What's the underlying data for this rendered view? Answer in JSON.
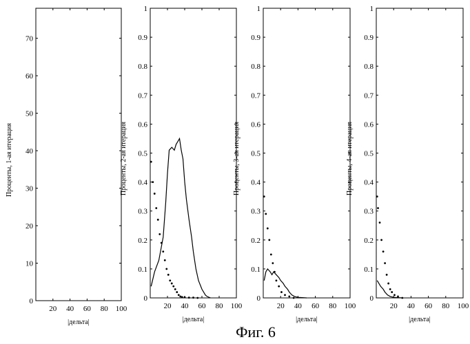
{
  "figure_caption": "Фиг. 6",
  "colors": {
    "ink": "#000000",
    "background": "#ffffff"
  },
  "chart_data": [
    {
      "type": "line",
      "ylabel": "Проценты, 1-ая итерация",
      "xlabel": "|дельта|",
      "xlim": [
        0,
        100
      ],
      "ylim": [
        0,
        78
      ],
      "x_ticks": [
        20,
        40,
        60,
        80,
        100
      ],
      "y_ticks": [
        0,
        10,
        20,
        30,
        40,
        50,
        60,
        70
      ],
      "series": []
    },
    {
      "type": "line",
      "ylabel": "Проценты, 2-ая итерация",
      "xlabel": "|дельта|",
      "xlim": [
        0,
        100
      ],
      "ylim": [
        0,
        1
      ],
      "x_ticks": [
        20,
        40,
        60,
        80,
        100
      ],
      "y_ticks": [
        0,
        0.1,
        0.2,
        0.3,
        0.4,
        0.5,
        0.6,
        0.7,
        0.8,
        0.9,
        1
      ],
      "series": [
        {
          "name": "line",
          "style": "line",
          "x": [
            1,
            5,
            10,
            15,
            18,
            20,
            22,
            25,
            28,
            30,
            32,
            34,
            36,
            38,
            40,
            42,
            45,
            48,
            50,
            53,
            56,
            60,
            62,
            64,
            66,
            70
          ],
          "y": [
            0.04,
            0.09,
            0.13,
            0.21,
            0.33,
            0.43,
            0.51,
            0.52,
            0.51,
            0.53,
            0.54,
            0.55,
            0.51,
            0.48,
            0.4,
            0.34,
            0.27,
            0.21,
            0.16,
            0.1,
            0.06,
            0.03,
            0.02,
            0.01,
            0.005,
            0.0
          ]
        },
        {
          "name": "points",
          "style": "dots",
          "x": [
            1,
            3,
            5,
            7,
            9,
            11,
            13,
            15,
            17,
            19,
            21,
            23,
            25,
            27,
            29,
            31,
            33,
            35,
            37,
            40,
            45,
            50,
            55
          ],
          "y": [
            0.47,
            0.4,
            0.36,
            0.31,
            0.27,
            0.22,
            0.19,
            0.16,
            0.13,
            0.1,
            0.08,
            0.06,
            0.05,
            0.04,
            0.03,
            0.02,
            0.01,
            0.005,
            0.003,
            0.002,
            0.001,
            0.001,
            0.0
          ]
        }
      ]
    },
    {
      "type": "line",
      "ylabel": "Проценты, 3-ая итерация",
      "xlabel": "|дельта|",
      "xlim": [
        0,
        100
      ],
      "ylim": [
        0,
        1
      ],
      "x_ticks": [
        20,
        40,
        60,
        80,
        100
      ],
      "y_ticks": [
        0,
        0.1,
        0.2,
        0.3,
        0.4,
        0.5,
        0.6,
        0.7,
        0.8,
        0.9,
        1
      ],
      "series": [
        {
          "name": "line",
          "style": "line",
          "x": [
            1,
            3,
            5,
            8,
            10,
            12,
            15,
            18,
            20,
            23,
            25,
            28,
            30,
            33,
            36,
            40,
            45,
            50
          ],
          "y": [
            0.06,
            0.09,
            0.1,
            0.09,
            0.08,
            0.09,
            0.08,
            0.07,
            0.06,
            0.05,
            0.04,
            0.03,
            0.02,
            0.01,
            0.005,
            0.002,
            0.001,
            0.0
          ]
        },
        {
          "name": "points",
          "style": "dots",
          "x": [
            1,
            3,
            5,
            7,
            9,
            11,
            13,
            15,
            18,
            21,
            25,
            30,
            35
          ],
          "y": [
            0.35,
            0.29,
            0.24,
            0.2,
            0.15,
            0.12,
            0.09,
            0.06,
            0.04,
            0.02,
            0.01,
            0.005,
            0.0
          ]
        }
      ]
    },
    {
      "type": "line",
      "ylabel": "Проценты, 4-ая итерация",
      "xlabel": "|дельта|",
      "xlim": [
        0,
        100
      ],
      "ylim": [
        0,
        1
      ],
      "x_ticks": [
        20,
        40,
        60,
        80,
        100
      ],
      "y_ticks": [
        0,
        0.1,
        0.2,
        0.3,
        0.4,
        0.5,
        0.6,
        0.7,
        0.8,
        0.9,
        1
      ],
      "series": [
        {
          "name": "line",
          "style": "line",
          "x": [
            1,
            3,
            5,
            8,
            10,
            13,
            16,
            20,
            25,
            30
          ],
          "y": [
            0.06,
            0.05,
            0.04,
            0.03,
            0.02,
            0.01,
            0.005,
            0.002,
            0.001,
            0.0
          ]
        },
        {
          "name": "points",
          "style": "dots",
          "x": [
            1,
            2,
            4,
            6,
            8,
            10,
            12,
            14,
            16,
            18,
            21,
            25,
            30
          ],
          "y": [
            0.35,
            0.31,
            0.26,
            0.2,
            0.16,
            0.12,
            0.08,
            0.05,
            0.03,
            0.02,
            0.01,
            0.005,
            0.0
          ]
        }
      ]
    }
  ]
}
